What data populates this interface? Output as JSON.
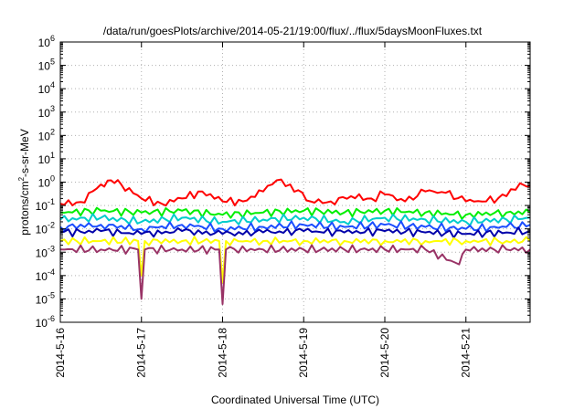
{
  "chart_data": {
    "type": "line",
    "title": "/data/run/goesPlots/archive/2014-05-21/19:00/flux/../flux/5daysMoonFluxes.txt",
    "xlabel": "Coordinated Universal Time (UTC)",
    "ylabel": {
      "prefix": "protons/cm",
      "sup": "2",
      "suffix": "-s-sr-MeV"
    },
    "yscale": "log",
    "ylim": [
      1e-06,
      1000000.0
    ],
    "xlim": [
      "2014-05-16",
      "2014-05-21 19:00"
    ],
    "grid": true,
    "legend": "none",
    "ytick_labels": [
      {
        "base": "10",
        "exp": "-6"
      },
      {
        "base": "10",
        "exp": "-5"
      },
      {
        "base": "10",
        "exp": "-4"
      },
      {
        "base": "10",
        "exp": "-3"
      },
      {
        "base": "10",
        "exp": "-2"
      },
      {
        "base": "10",
        "exp": "-1"
      },
      {
        "base": "10",
        "exp": "0"
      },
      {
        "base": "10",
        "exp": "1"
      },
      {
        "base": "10",
        "exp": "2"
      },
      {
        "base": "10",
        "exp": "3"
      },
      {
        "base": "10",
        "exp": "4"
      },
      {
        "base": "10",
        "exp": "5"
      },
      {
        "base": "10",
        "exp": "6"
      }
    ],
    "xtick_labels": [
      "2014-5-16",
      "2014-5-17",
      "2014-5-18",
      "2014-5-19",
      "2014-5-20",
      "2014-5-21"
    ],
    "series": [
      {
        "color": "#ff0000",
        "x": [
          "2014-05-16 00:00",
          "2014-05-16 06:00",
          "2014-05-16 12:00",
          "2014-05-16 15:00",
          "2014-05-16 18:00",
          "2014-05-17 00:00",
          "2014-05-17 06:00",
          "2014-05-17 12:00",
          "2014-05-17 18:00",
          "2014-05-18 00:00",
          "2014-05-18 06:00",
          "2014-05-18 12:00",
          "2014-05-18 16:00",
          "2014-05-18 20:00",
          "2014-05-19 02:00",
          "2014-05-19 08:00",
          "2014-05-19 14:00",
          "2014-05-19 20:00",
          "2014-05-20 00:00",
          "2014-05-20 06:00",
          "2014-05-20 12:00",
          "2014-05-20 18:00",
          "2014-05-21 00:00",
          "2014-05-21 06:00",
          "2014-05-21 12:00",
          "2014-05-21 16:00",
          "2014-05-21 19:00"
        ],
        "values": [
          0.12,
          0.14,
          0.8,
          1.2,
          0.8,
          0.2,
          0.12,
          0.2,
          0.4,
          0.15,
          0.15,
          0.4,
          1.2,
          0.8,
          0.15,
          0.15,
          0.25,
          0.2,
          0.3,
          0.15,
          0.4,
          0.35,
          0.15,
          0.15,
          0.25,
          0.9,
          0.7
        ]
      },
      {
        "color": "#00ee00",
        "x": [
          "2014-05-16 00:00",
          "2014-05-16 12:00",
          "2014-05-17 00:00",
          "2014-05-17 12:00",
          "2014-05-18 00:00",
          "2014-05-18 12:00",
          "2014-05-19 00:00",
          "2014-05-19 12:00",
          "2014-05-20 00:00",
          "2014-05-20 12:00",
          "2014-05-21 00:00",
          "2014-05-21 12:00",
          "2014-05-21 19:00"
        ],
        "values": [
          0.05,
          0.06,
          0.05,
          0.06,
          0.04,
          0.05,
          0.06,
          0.05,
          0.06,
          0.05,
          0.04,
          0.05,
          0.05
        ]
      },
      {
        "color": "#00cccc",
        "x": [
          "2014-05-16 00:00",
          "2014-05-16 12:00",
          "2014-05-17 00:00",
          "2014-05-17 12:00",
          "2014-05-18 00:00",
          "2014-05-18 12:00",
          "2014-05-19 00:00",
          "2014-05-19 12:00",
          "2014-05-20 00:00",
          "2014-05-20 12:00",
          "2014-05-21 00:00",
          "2014-05-21 12:00",
          "2014-05-21 19:00"
        ],
        "values": [
          0.025,
          0.03,
          0.02,
          0.03,
          0.02,
          0.025,
          0.03,
          0.02,
          0.03,
          0.025,
          0.02,
          0.025,
          0.03
        ]
      },
      {
        "color": "#1a4dff",
        "x": [
          "2014-05-16 00:00",
          "2014-05-16 12:00",
          "2014-05-17 00:00",
          "2014-05-17 12:00",
          "2014-05-18 00:00",
          "2014-05-18 12:00",
          "2014-05-19 00:00",
          "2014-05-19 12:00",
          "2014-05-20 00:00",
          "2014-05-20 12:00",
          "2014-05-21 00:00",
          "2014-05-21 12:00",
          "2014-05-21 19:00"
        ],
        "values": [
          0.012,
          0.015,
          0.01,
          0.015,
          0.01,
          0.012,
          0.015,
          0.012,
          0.015,
          0.012,
          0.01,
          0.012,
          0.015
        ]
      },
      {
        "color": "#0000aa",
        "x": [
          "2014-05-16 00:00",
          "2014-05-16 12:00",
          "2014-05-17 00:00",
          "2014-05-17 12:00",
          "2014-05-18 00:00",
          "2014-05-18 12:00",
          "2014-05-19 00:00",
          "2014-05-19 12:00",
          "2014-05-20 00:00",
          "2014-05-20 12:00",
          "2014-05-21 00:00",
          "2014-05-21 12:00",
          "2014-05-21 19:00"
        ],
        "values": [
          0.007,
          0.008,
          0.006,
          0.008,
          0.006,
          0.007,
          0.008,
          0.007,
          0.008,
          0.007,
          0.006,
          0.007,
          0.008
        ]
      },
      {
        "color": "#ffff00",
        "x": [
          "2014-05-16 00:00",
          "2014-05-16 12:00",
          "2014-05-16 23:00",
          "2014-05-17 00:00",
          "2014-05-17 01:00",
          "2014-05-17 12:00",
          "2014-05-17 23:00",
          "2014-05-18 00:00",
          "2014-05-18 01:00",
          "2014-05-18 12:00",
          "2014-05-19 00:00",
          "2014-05-19 12:00",
          "2014-05-20 00:00",
          "2014-05-20 12:00",
          "2014-05-21 00:00",
          "2014-05-21 12:00",
          "2014-05-21 19:00"
        ],
        "values": [
          0.003,
          0.003,
          0.003,
          0.0001,
          0.003,
          0.003,
          0.003,
          5e-05,
          0.003,
          0.003,
          0.003,
          0.003,
          0.003,
          0.003,
          0.003,
          0.003,
          0.003
        ]
      },
      {
        "color": "#993366",
        "x": [
          "2014-05-16 00:00",
          "2014-05-16 12:00",
          "2014-05-16 23:00",
          "2014-05-17 00:00",
          "2014-05-17 01:00",
          "2014-05-17 12:00",
          "2014-05-17 23:00",
          "2014-05-18 00:00",
          "2014-05-18 01:00",
          "2014-05-18 12:00",
          "2014-05-19 00:00",
          "2014-05-19 12:00",
          "2014-05-20 00:00",
          "2014-05-20 12:00",
          "2014-05-20 22:00",
          "2014-05-21 00:00",
          "2014-05-21 12:00",
          "2014-05-21 19:00"
        ],
        "values": [
          0.0013,
          0.0013,
          0.0013,
          1e-05,
          0.0013,
          0.0013,
          0.0013,
          6e-06,
          0.0013,
          0.0013,
          0.0013,
          0.0013,
          0.0013,
          0.0013,
          0.0003,
          0.0013,
          0.0013,
          0.0013
        ]
      }
    ]
  }
}
